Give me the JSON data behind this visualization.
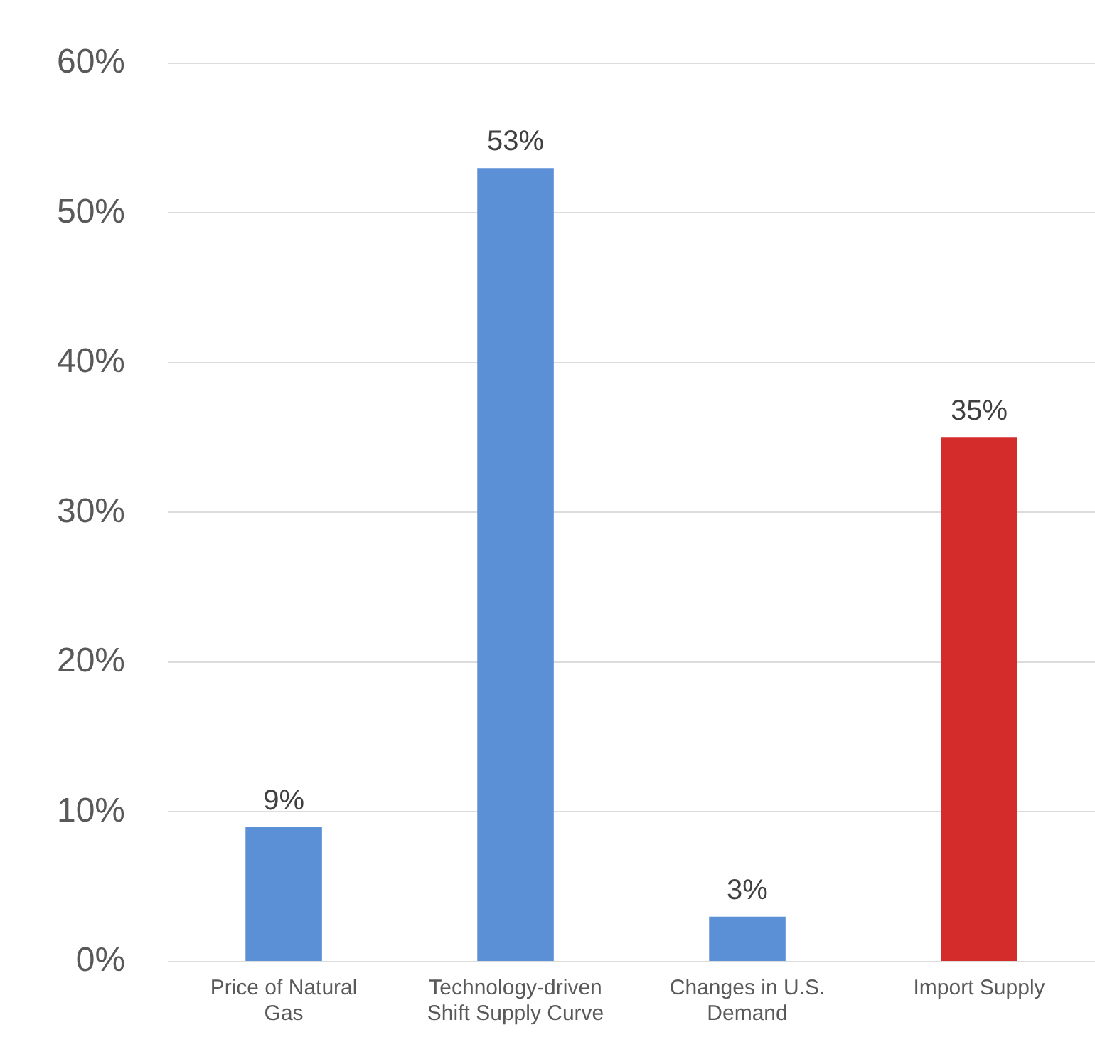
{
  "chart_data": {
    "type": "bar",
    "categories": [
      "Price of Natural Gas",
      "Technology-driven Shift Supply Curve",
      "Changes in U.S. Demand",
      "Import Supply"
    ],
    "values": [
      9,
      53,
      3,
      35
    ],
    "colors": [
      "#5b8fd6",
      "#5b8fd6",
      "#5b8fd6",
      "#d42b2b"
    ],
    "value_labels": [
      "9%",
      "53%",
      "3%",
      "35%"
    ],
    "ylim": [
      0,
      60
    ],
    "yticks": [
      {
        "value": 0,
        "label": "0%"
      },
      {
        "value": 10,
        "label": "10%"
      },
      {
        "value": 20,
        "label": "20%"
      },
      {
        "value": 30,
        "label": "30%"
      },
      {
        "value": 40,
        "label": "40%"
      },
      {
        "value": 50,
        "label": "50%"
      },
      {
        "value": 60,
        "label": "60%"
      }
    ],
    "grid": "y",
    "legend": false
  }
}
